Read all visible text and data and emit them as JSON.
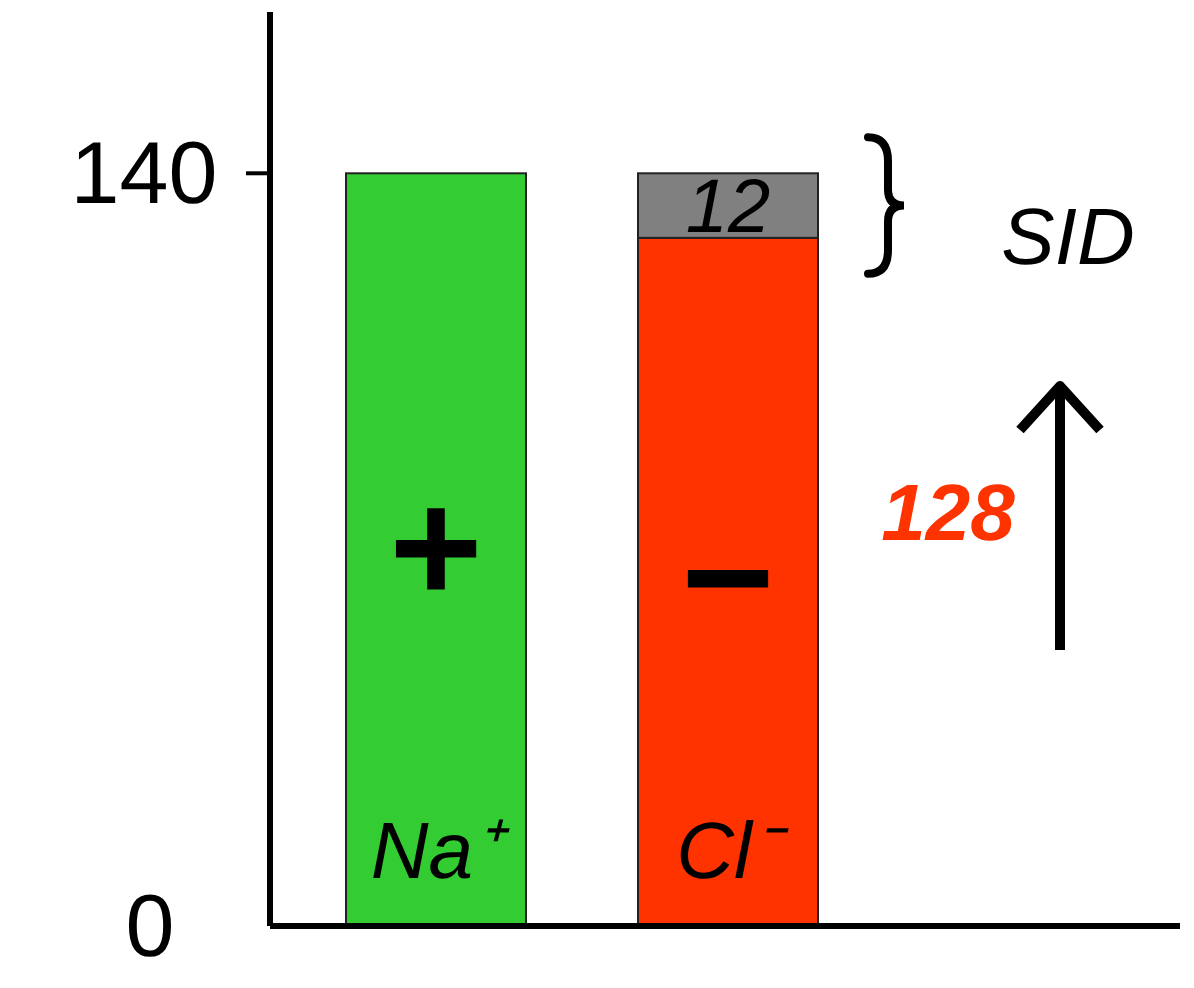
{
  "chart_data": {
    "type": "bar",
    "stacked": true,
    "categories": [
      "Na⁺",
      "Cl⁻"
    ],
    "series": [
      {
        "colors": [
          "#33cc33",
          "#ff3300"
        ],
        "values": [
          140,
          128
        ]
      },
      {
        "color": "#808080",
        "values": [
          null,
          12
        ],
        "value_labels": [
          null,
          "12"
        ]
      }
    ],
    "ylim": [
      0,
      170
    ],
    "yticks": [
      0,
      140
    ],
    "grid": false,
    "annotations": [
      "+",
      "−",
      "128",
      "SID"
    ]
  }
}
